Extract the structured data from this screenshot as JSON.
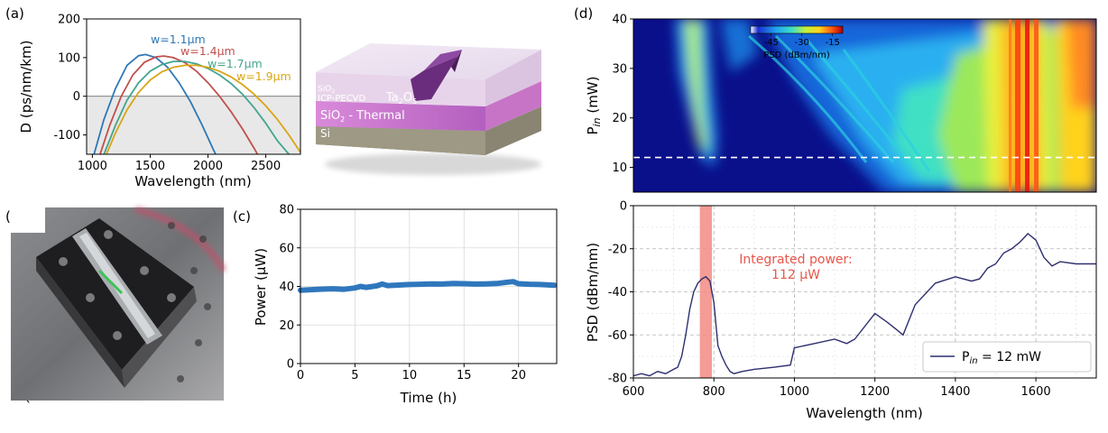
{
  "panel_labels": {
    "a": "(a)",
    "b": "(b)",
    "c": "(c)",
    "d": "(d)"
  },
  "stray_mark": "`",
  "colors": {
    "w11": "#2e78b7",
    "w14": "#c0504d",
    "w17": "#43a58f",
    "w19": "#d9a514",
    "psd_line": "#2e2f6e",
    "highlight": "#f28b82",
    "cw_blue": "#2f77bd",
    "dashed": "#ffffff"
  },
  "chip": {
    "layers": {
      "top": "SiO",
      "top_sub": "2",
      "top_line2": "ICP-PECVD",
      "core": "Ta",
      "core_sub1": "2",
      "core_mid": "O",
      "core_sub2": "5",
      "thermal": "SiO",
      "thermal_sub": "2",
      "thermal_rest": " - Thermal",
      "substrate": "Si"
    }
  },
  "photo": {
    "description_icon": "device-photo-icon"
  },
  "annotation": {
    "line1": "Integrated power:",
    "line2": "112 μW"
  },
  "chart_data": [
    {
      "id": "a",
      "type": "line",
      "title": "",
      "xlabel": "Wavelength (nm)",
      "ylabel": "D (ps/nm/km)",
      "xlim": [
        950,
        2800
      ],
      "ylim": [
        -150,
        200
      ],
      "xticks": [
        1000,
        1500,
        2000,
        2500
      ],
      "yticks": [
        -100,
        0,
        100,
        200
      ],
      "shaded_below_zero": true,
      "grid": false,
      "series": [
        {
          "name": "w=1.1μm",
          "x": [
            1000,
            1100,
            1200,
            1300,
            1400,
            1460,
            1550,
            1650,
            1750,
            1850,
            1950,
            2050,
            2100
          ],
          "y": [
            -165,
            -60,
            20,
            80,
            105,
            108,
            100,
            75,
            35,
            -15,
            -75,
            -140,
            -170
          ]
        },
        {
          "name": "w=1.4μm",
          "x": [
            1050,
            1150,
            1250,
            1350,
            1450,
            1550,
            1620,
            1700,
            1800,
            1900,
            2000,
            2100,
            2200,
            2300,
            2400,
            2450
          ],
          "y": [
            -165,
            -75,
            0,
            55,
            88,
            102,
            104,
            100,
            87,
            65,
            35,
            0,
            -40,
            -85,
            -135,
            -162
          ]
        },
        {
          "name": "w=1.7μm",
          "x": [
            1080,
            1200,
            1300,
            1400,
            1500,
            1600,
            1700,
            1800,
            1900,
            2000,
            2100,
            2200,
            2300,
            2400,
            2500,
            2600,
            2700
          ],
          "y": [
            -165,
            -75,
            -10,
            35,
            65,
            82,
            90,
            90,
            84,
            72,
            55,
            33,
            5,
            -30,
            -70,
            -115,
            -150
          ]
        },
        {
          "name": "w=1.9μm",
          "x": [
            1100,
            1200,
            1300,
            1400,
            1500,
            1600,
            1700,
            1800,
            1900,
            2000,
            2100,
            2200,
            2300,
            2400,
            2500,
            2600,
            2700,
            2800
          ],
          "y": [
            -165,
            -95,
            -35,
            10,
            42,
            63,
            75,
            80,
            80,
            75,
            65,
            50,
            30,
            5,
            -25,
            -60,
            -100,
            -145
          ]
        }
      ]
    },
    {
      "id": "c",
      "type": "scatter",
      "title": "",
      "xlabel": "Time (h)",
      "ylabel": "Power (μW)",
      "xlim": [
        0,
        23.5
      ],
      "ylim": [
        0,
        80
      ],
      "xticks": [
        0,
        5,
        10,
        15,
        20
      ],
      "yticks": [
        0,
        20,
        40,
        60,
        80
      ],
      "grid": true,
      "series": [
        {
          "name": "",
          "x": [
            0,
            1,
            2,
            3,
            4,
            5,
            5.5,
            6,
            7,
            7.5,
            8,
            9,
            10,
            11,
            12,
            13,
            14,
            15,
            16,
            17,
            18,
            19,
            19.5,
            20,
            21,
            22,
            23.3
          ],
          "y": [
            38,
            38.3,
            38.6,
            38.8,
            38.5,
            39.2,
            40,
            39.5,
            40.3,
            41.2,
            40.4,
            40.7,
            41,
            41.1,
            41.3,
            41.2,
            41.5,
            41.4,
            41.2,
            41.3,
            41.5,
            42.2,
            42.5,
            41.4,
            41.1,
            41,
            40.6
          ]
        }
      ]
    },
    {
      "id": "d-top",
      "type": "heatmap",
      "title": "",
      "xlabel": "",
      "ylabel": "P_in (mW)",
      "xlim": [
        600,
        1750
      ],
      "ylim": [
        5,
        40
      ],
      "yticks": [
        10,
        20,
        30,
        40
      ],
      "dashed_line_y": 12,
      "colorbar": {
        "label": "PSD (dBm/nm)",
        "ticks": [
          -45,
          -30,
          -15
        ],
        "range": [
          -55,
          -10
        ],
        "placement": "top-center"
      }
    },
    {
      "id": "d-bottom",
      "type": "line",
      "title": "",
      "xlabel": "Wavelength (nm)",
      "ylabel": "PSD (dBm/nm)",
      "xlim": [
        600,
        1750
      ],
      "ylim": [
        -80,
        0
      ],
      "xticks": [
        600,
        800,
        1000,
        1200,
        1400,
        1600
      ],
      "yticks": [
        -80,
        -60,
        -40,
        -20,
        0
      ],
      "grid": true,
      "legend": "bottom-right",
      "highlight_band": [
        765,
        795
      ],
      "series": [
        {
          "name": "P",
          "name_sub": "in",
          "name_rest": " = 12 mW",
          "x": [
            600,
            620,
            640,
            660,
            680,
            700,
            710,
            720,
            730,
            740,
            750,
            760,
            770,
            780,
            790,
            800,
            810,
            820,
            830,
            840,
            850,
            870,
            900,
            950,
            990,
            1000,
            1050,
            1100,
            1130,
            1150,
            1200,
            1230,
            1250,
            1270,
            1300,
            1350,
            1400,
            1440,
            1460,
            1480,
            1500,
            1520,
            1540,
            1560,
            1580,
            1600,
            1620,
            1640,
            1660,
            1700,
            1750
          ],
          "y": [
            -79,
            -78,
            -79,
            -77,
            -78,
            -76,
            -75,
            -70,
            -60,
            -48,
            -40,
            -36,
            -34,
            -33,
            -35,
            -45,
            -65,
            -70,
            -74,
            -77,
            -78,
            -77,
            -76,
            -75,
            -74,
            -66,
            -64,
            -62,
            -64,
            -62,
            -50,
            -54,
            -57,
            -60,
            -46,
            -36,
            -33,
            -35,
            -34,
            -29,
            -27,
            -22,
            -20,
            -17,
            -13,
            -16,
            -24,
            -28,
            -26,
            -27,
            -27
          ]
        }
      ]
    }
  ]
}
